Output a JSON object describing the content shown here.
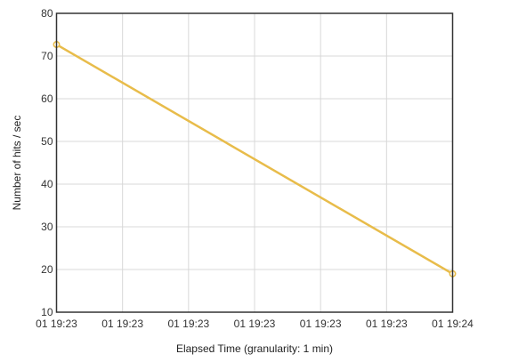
{
  "chart_data": {
    "type": "line",
    "title": "",
    "xlabel": "Elapsed Time (granularity: 1 min)",
    "ylabel": "Number of hits / sec",
    "x_tick_labels": [
      "01 19:23",
      "01 19:23",
      "01 19:23",
      "01 19:23",
      "01 19:23",
      "01 19:23",
      "01 19:24"
    ],
    "y_ticks": [
      10,
      20,
      30,
      40,
      50,
      60,
      70,
      80
    ],
    "ylim": [
      10,
      80
    ],
    "grid": true,
    "legend": "none",
    "series": [
      {
        "x": [
          0,
          6
        ],
        "values": [
          72.7,
          19.0
        ],
        "color": "#e8bc4a"
      }
    ]
  }
}
